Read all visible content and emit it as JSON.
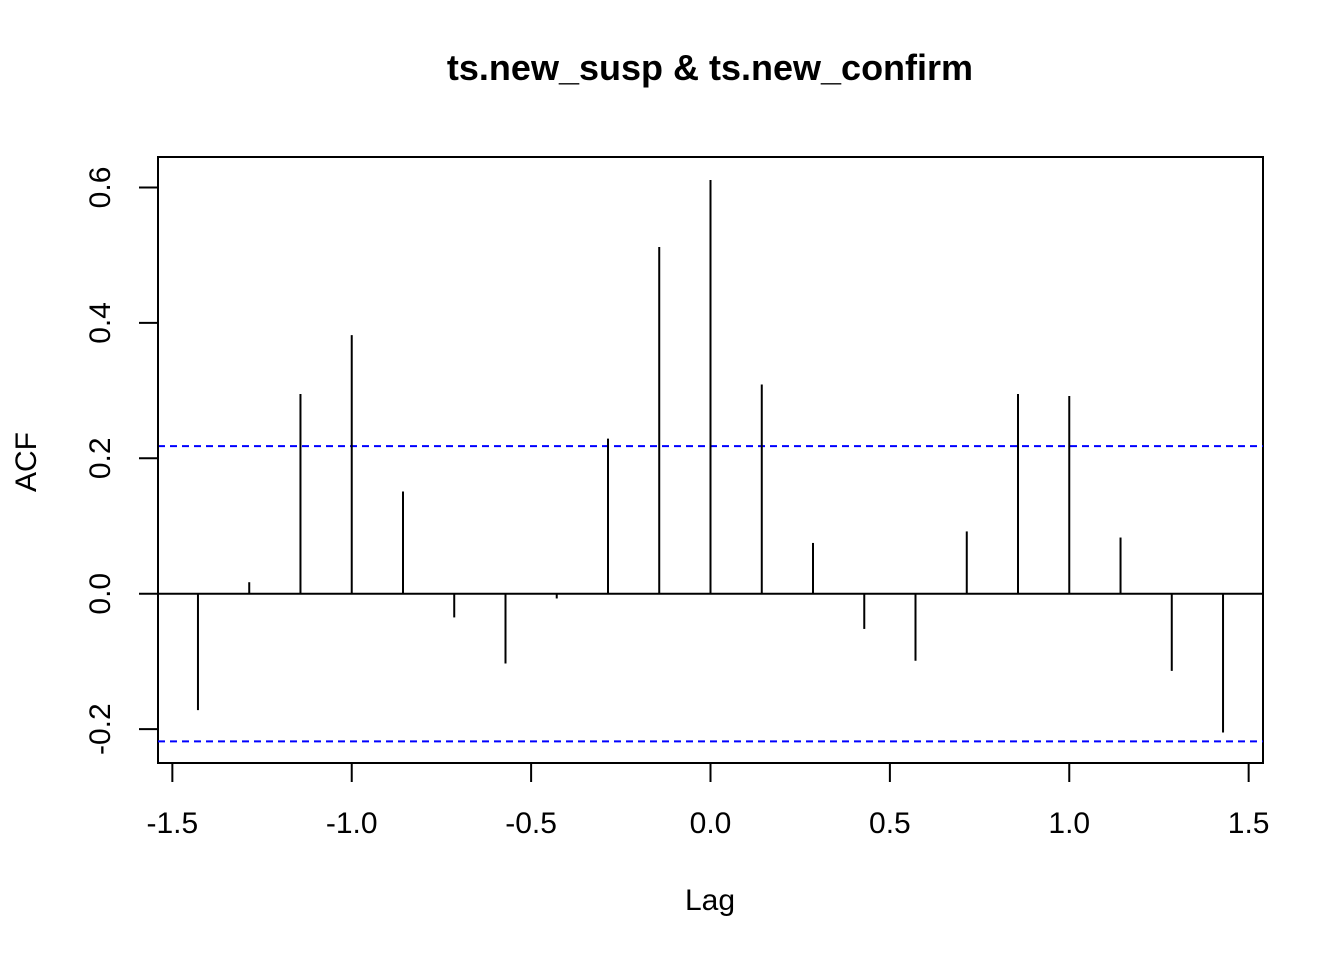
{
  "chart_data": {
    "type": "bar",
    "title": "ts.new_susp & ts.new_confirm",
    "xlabel": "Lag",
    "ylabel": "ACF",
    "xlim": [
      -1.54,
      1.54
    ],
    "ylim": [
      -0.25,
      0.645
    ],
    "x_ticks": [
      -1.5,
      -1.0,
      -0.5,
      0.0,
      0.5,
      1.0,
      1.5
    ],
    "x_tick_labels": [
      "-1.5",
      "-1.0",
      "-0.5",
      "0.0",
      "0.5",
      "1.0",
      "1.5"
    ],
    "y_ticks": [
      -0.2,
      0.0,
      0.2,
      0.4,
      0.6
    ],
    "y_tick_labels": [
      "-0.2",
      "0.0",
      "0.2",
      "0.4",
      "0.6"
    ],
    "lags": [
      -1.4286,
      -1.2857,
      -1.1429,
      -1.0,
      -0.8571,
      -0.7143,
      -0.5714,
      -0.4286,
      -0.2857,
      -0.1429,
      0.0,
      0.1429,
      0.2857,
      0.4286,
      0.5714,
      0.7143,
      0.8571,
      1.0,
      1.1429,
      1.2857,
      1.4286
    ],
    "values": [
      -0.172,
      0.017,
      0.295,
      0.382,
      0.151,
      -0.035,
      -0.103,
      -0.007,
      0.229,
      0.512,
      0.611,
      0.309,
      0.075,
      -0.052,
      -0.099,
      0.092,
      0.295,
      0.292,
      0.083,
      -0.114,
      -0.205
    ],
    "confidence_bound": 0.218,
    "colors": {
      "spike": "#000000",
      "confidence": "#0000ff",
      "zero_line": "#000000"
    },
    "grid": false,
    "legend": "none"
  }
}
